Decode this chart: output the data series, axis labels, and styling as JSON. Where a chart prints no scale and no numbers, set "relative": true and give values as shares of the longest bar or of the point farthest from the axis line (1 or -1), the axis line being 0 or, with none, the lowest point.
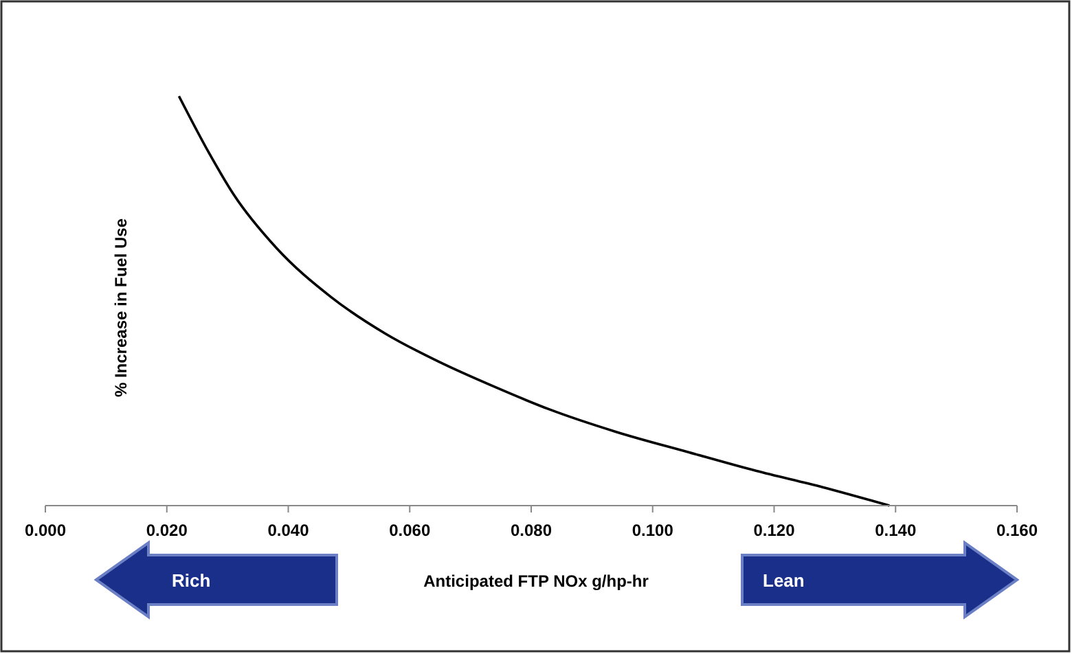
{
  "chart_data": {
    "type": "line",
    "xlabel": "Anticipated FTP NOx g/hp-hr",
    "ylabel": "% Increase in Fuel Use",
    "relative": true,
    "xlim": [
      0,
      0.16
    ],
    "xticks": [
      {
        "value": 0,
        "label": "0.000"
      },
      {
        "value": 0.02,
        "label": "0.020"
      },
      {
        "value": 0.04,
        "label": "0.040"
      },
      {
        "value": 0.06,
        "label": "0.060"
      },
      {
        "value": 0.08,
        "label": "0.080"
      },
      {
        "value": 0.1,
        "label": "0.100"
      },
      {
        "value": 0.12,
        "label": "0.120"
      },
      {
        "value": 0.14,
        "label": "0.140"
      },
      {
        "value": 0.16,
        "label": "0.160"
      }
    ],
    "series": [
      {
        "color": "#000000",
        "x": [
          0.022,
          0.027,
          0.031,
          0.038,
          0.047,
          0.056,
          0.065,
          0.074,
          0.083,
          0.094,
          0.106,
          0.117,
          0.128,
          0.139
        ],
        "values": [
          1.0,
          0.86,
          0.76,
          0.63,
          0.51,
          0.42,
          0.35,
          0.29,
          0.235,
          0.18,
          0.13,
          0.085,
          0.045,
          0.0
        ]
      }
    ],
    "annotations": [
      "Rich",
      "Lean"
    ],
    "marker": "none",
    "line_style": "solid",
    "grid": false
  }
}
